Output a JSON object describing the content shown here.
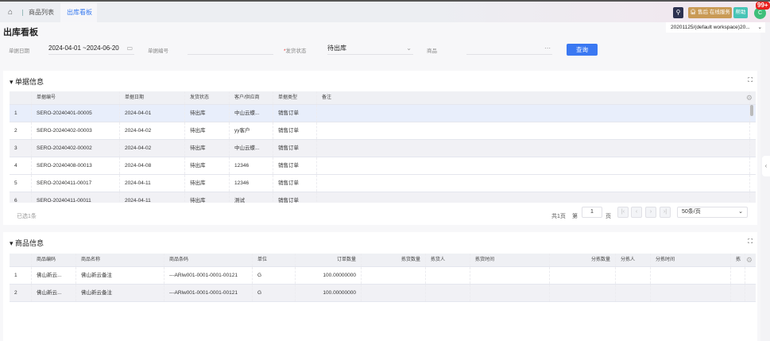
{
  "tabs": {
    "home_icon": "home-icon",
    "items": [
      {
        "label": "商品列表"
      },
      {
        "label": "出库看板",
        "active": true,
        "close": "×"
      }
    ]
  },
  "header": {
    "search_icon": "search-icon",
    "service_label": "售后 在线服务",
    "help_label": "帮助",
    "avatar_letter": "C",
    "badge": "99+",
    "workspace": "20201125/(default workspace)20...",
    "colors": {
      "service": "#c99a55",
      "help": "#47c4b6",
      "avatar": "#3fbf7a",
      "accent": "#3a78f2"
    }
  },
  "page_title": "出库看板",
  "filters": {
    "date_label": "单据日期",
    "date_value": "2024-04-01  ~2024-06-20",
    "doc_no_label": "单据编号",
    "doc_no_value": "",
    "status_label": "发货状态",
    "status_required": "*",
    "status_value": "待出库",
    "product_label": "商品",
    "product_value": "",
    "query_button": "查询"
  },
  "doc_section": {
    "title": "单据信息",
    "columns": [
      "",
      "单据编号",
      "单据日期",
      "发货状态",
      "客户/供应商",
      "单据类型",
      "备注"
    ],
    "rows": [
      [
        "1",
        "SERO-20240401-00005",
        "2024-04-01",
        "待出库",
        "中山云蝶...",
        "销售订单",
        ""
      ],
      [
        "2",
        "SERO-20240402-00003",
        "2024-04-02",
        "待出库",
        "yy客户",
        "销售订单",
        ""
      ],
      [
        "3",
        "SERO-20240402-00002",
        "2024-04-02",
        "待出库",
        "中山云蝶...",
        "销售订单",
        ""
      ],
      [
        "4",
        "SERO-20240408-00013",
        "2024-04-08",
        "待出库",
        "12346",
        "销售订单",
        ""
      ],
      [
        "5",
        "SERO-20240411-00017",
        "2024-04-11",
        "待出库",
        "12346",
        "销售订单",
        ""
      ],
      [
        "6",
        "SERO-20240411-00011",
        "2024-04-11",
        "待出库",
        "测试",
        "销售订单",
        ""
      ]
    ],
    "selected_text": "已选1条",
    "pagination": {
      "total_pages": "共1页",
      "page_prefix": "第",
      "page": "1",
      "page_suffix": "页",
      "page_size": "50条/页"
    }
  },
  "product_section": {
    "title": "商品信息",
    "columns": [
      "",
      "商品编码",
      "商品名称",
      "商品条码",
      "单位",
      "订单数量",
      "拣货数量",
      "拣货人",
      "拣货时间",
      "分拣数量",
      "分拣人",
      "分拣时间",
      "拣"
    ],
    "rows": [
      [
        "1",
        "佛山新云...",
        "佛山新云备注",
        "---ARlw001-0001-0001-00121",
        "G",
        "100.00000000",
        "",
        "",
        "",
        "",
        "",
        "",
        ""
      ],
      [
        "2",
        "佛山新云...",
        "佛山新云备注",
        "---ARlw001-0001-0001-00121",
        "G",
        "100.00000000",
        "",
        "",
        "",
        "",
        "",
        "",
        ""
      ]
    ]
  }
}
